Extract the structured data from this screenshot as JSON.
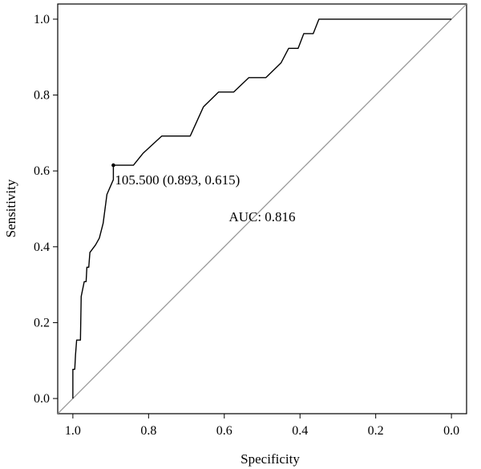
{
  "chart_data": {
    "type": "line",
    "title": "",
    "xlabel": "Specificity",
    "ylabel": "Sensitivity",
    "xlim": [
      1.04,
      -0.04
    ],
    "ylim": [
      -0.04,
      1.04
    ],
    "x_reversed": true,
    "x_ticks": [
      1.0,
      0.8,
      0.6,
      0.4,
      0.2,
      0.0
    ],
    "x_tick_labels": [
      "1.0",
      "0.8",
      "0.6",
      "0.4",
      "0.2",
      "0.0"
    ],
    "y_ticks": [
      0.0,
      0.2,
      0.4,
      0.6,
      0.8,
      1.0
    ],
    "y_tick_labels": [
      "0.0",
      "0.2",
      "0.4",
      "0.6",
      "0.8",
      "1.0"
    ],
    "grid": false,
    "legend": "none",
    "series": [
      {
        "values_xy": [
          [
            1.0,
            0.0
          ],
          [
            1.0,
            0.077
          ],
          [
            0.995,
            0.077
          ],
          [
            0.993,
            0.115
          ],
          [
            0.99,
            0.154
          ],
          [
            0.98,
            0.154
          ],
          [
            0.978,
            0.269
          ],
          [
            0.97,
            0.308
          ],
          [
            0.965,
            0.308
          ],
          [
            0.963,
            0.346
          ],
          [
            0.958,
            0.346
          ],
          [
            0.955,
            0.385
          ],
          [
            0.94,
            0.405
          ],
          [
            0.93,
            0.423
          ],
          [
            0.92,
            0.462
          ],
          [
            0.915,
            0.5
          ],
          [
            0.91,
            0.538
          ],
          [
            0.893,
            0.577
          ],
          [
            0.893,
            0.615
          ],
          [
            0.84,
            0.615
          ],
          [
            0.815,
            0.646
          ],
          [
            0.765,
            0.692
          ],
          [
            0.69,
            0.692
          ],
          [
            0.655,
            0.769
          ],
          [
            0.615,
            0.808
          ],
          [
            0.575,
            0.808
          ],
          [
            0.535,
            0.846
          ],
          [
            0.49,
            0.846
          ],
          [
            0.45,
            0.885
          ],
          [
            0.43,
            0.923
          ],
          [
            0.405,
            0.923
          ],
          [
            0.39,
            0.962
          ],
          [
            0.365,
            0.962
          ],
          [
            0.35,
            1.0
          ],
          [
            0.0,
            1.0
          ]
        ],
        "color": "#000000"
      },
      {
        "values_xy": [
          [
            1.04,
            -0.04
          ],
          [
            -0.04,
            1.04
          ]
        ],
        "color": "#999999"
      }
    ],
    "annotations": [
      {
        "text": "105.500 (0.893, 0.615)",
        "x": 0.893,
        "y": 0.615
      },
      {
        "text": "AUC: 0.816",
        "x": 0.5,
        "y": 0.48
      }
    ]
  }
}
